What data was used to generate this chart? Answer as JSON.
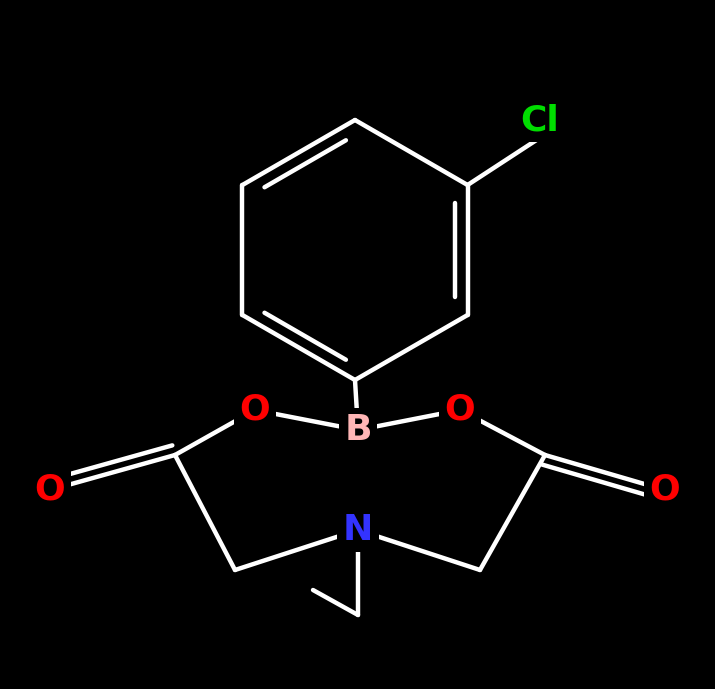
{
  "background_color": "#000000",
  "figsize": [
    7.15,
    6.89
  ],
  "dpi": 100,
  "Cl_label": "Cl",
  "Cl_color": "#00dd00",
  "Cl_fontsize": 26,
  "B_label": "B",
  "B_color": "#ffb6b6",
  "B_fontsize": 26,
  "N_label": "N",
  "N_color": "#3333ff",
  "N_fontsize": 26,
  "O_label": "O",
  "O_color": "#ff0000",
  "O_fontsize": 26,
  "bond_color": "#ffffff",
  "lw": 3.2
}
